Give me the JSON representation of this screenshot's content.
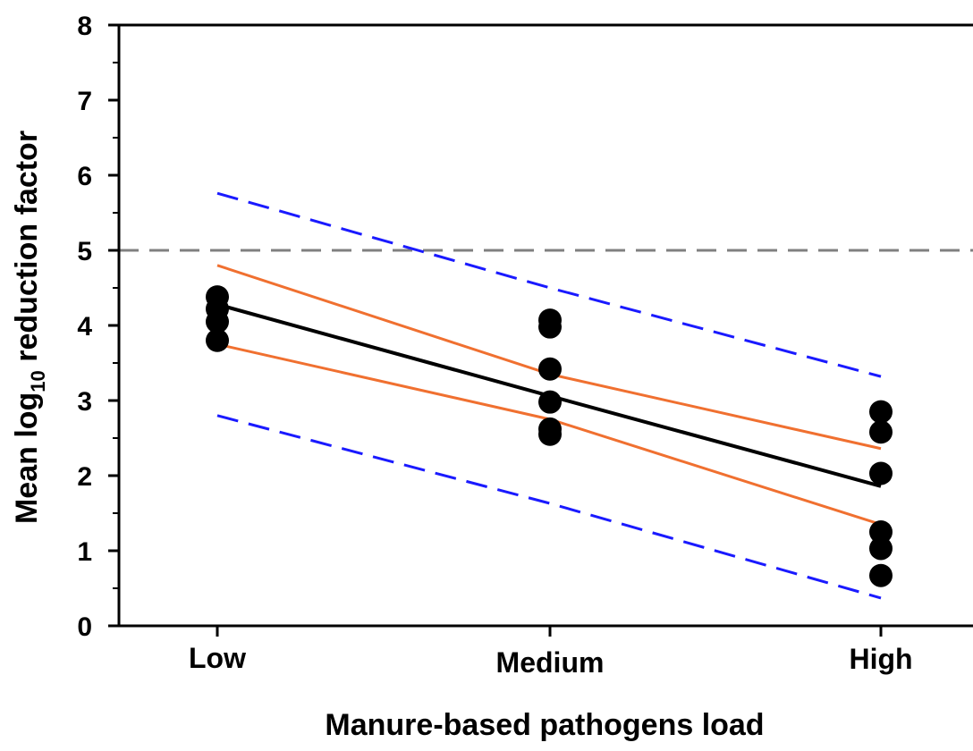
{
  "chart_data": {
    "type": "scatter",
    "title": "",
    "xlabel": "Manure-based pathogens load",
    "ylabel": {
      "prefix": "Mean log",
      "subscript": "10",
      "suffix": " reduction factor"
    },
    "categories": [
      "Low",
      "Medium",
      "High"
    ],
    "ylim": [
      0,
      8
    ],
    "yticks": [
      "0",
      "1",
      "2",
      "3",
      "4",
      "5",
      "6",
      "7",
      "8"
    ],
    "grid": false,
    "legend": "none",
    "points": [
      {
        "x": "Low",
        "y": 4.38
      },
      {
        "x": "Low",
        "y": 4.22
      },
      {
        "x": "Low",
        "y": 4.05
      },
      {
        "x": "Low",
        "y": 3.8
      },
      {
        "x": "Medium",
        "y": 4.07
      },
      {
        "x": "Medium",
        "y": 3.98
      },
      {
        "x": "Medium",
        "y": 3.42
      },
      {
        "x": "Medium",
        "y": 2.98
      },
      {
        "x": "Medium",
        "y": 2.62
      },
      {
        "x": "Medium",
        "y": 2.55
      },
      {
        "x": "High",
        "y": 2.85
      },
      {
        "x": "High",
        "y": 2.58
      },
      {
        "x": "High",
        "y": 2.03
      },
      {
        "x": "High",
        "y": 1.25
      },
      {
        "x": "High",
        "y": 1.03
      },
      {
        "x": "High",
        "y": 0.67
      }
    ],
    "fit_lines": [
      {
        "style": "regression",
        "color": "#000000",
        "dash": "solid",
        "y": [
          4.28,
          3.06,
          1.86
        ]
      },
      {
        "style": "confidence-upper",
        "color": "#f07030",
        "dash": "solid",
        "y": [
          4.8,
          3.35,
          2.36
        ]
      },
      {
        "style": "confidence-lower",
        "color": "#f07030",
        "dash": "solid",
        "y": [
          3.75,
          2.75,
          1.35
        ]
      },
      {
        "style": "prediction-upper",
        "color": "#1a1aff",
        "dash": "dashed",
        "y": [
          5.76,
          4.5,
          3.32
        ]
      },
      {
        "style": "prediction-lower",
        "color": "#1a1aff",
        "dash": "dashed",
        "y": [
          2.8,
          1.63,
          0.37
        ]
      }
    ],
    "reference_line": {
      "y": 5,
      "color": "#808080",
      "dash": "dashed"
    }
  }
}
